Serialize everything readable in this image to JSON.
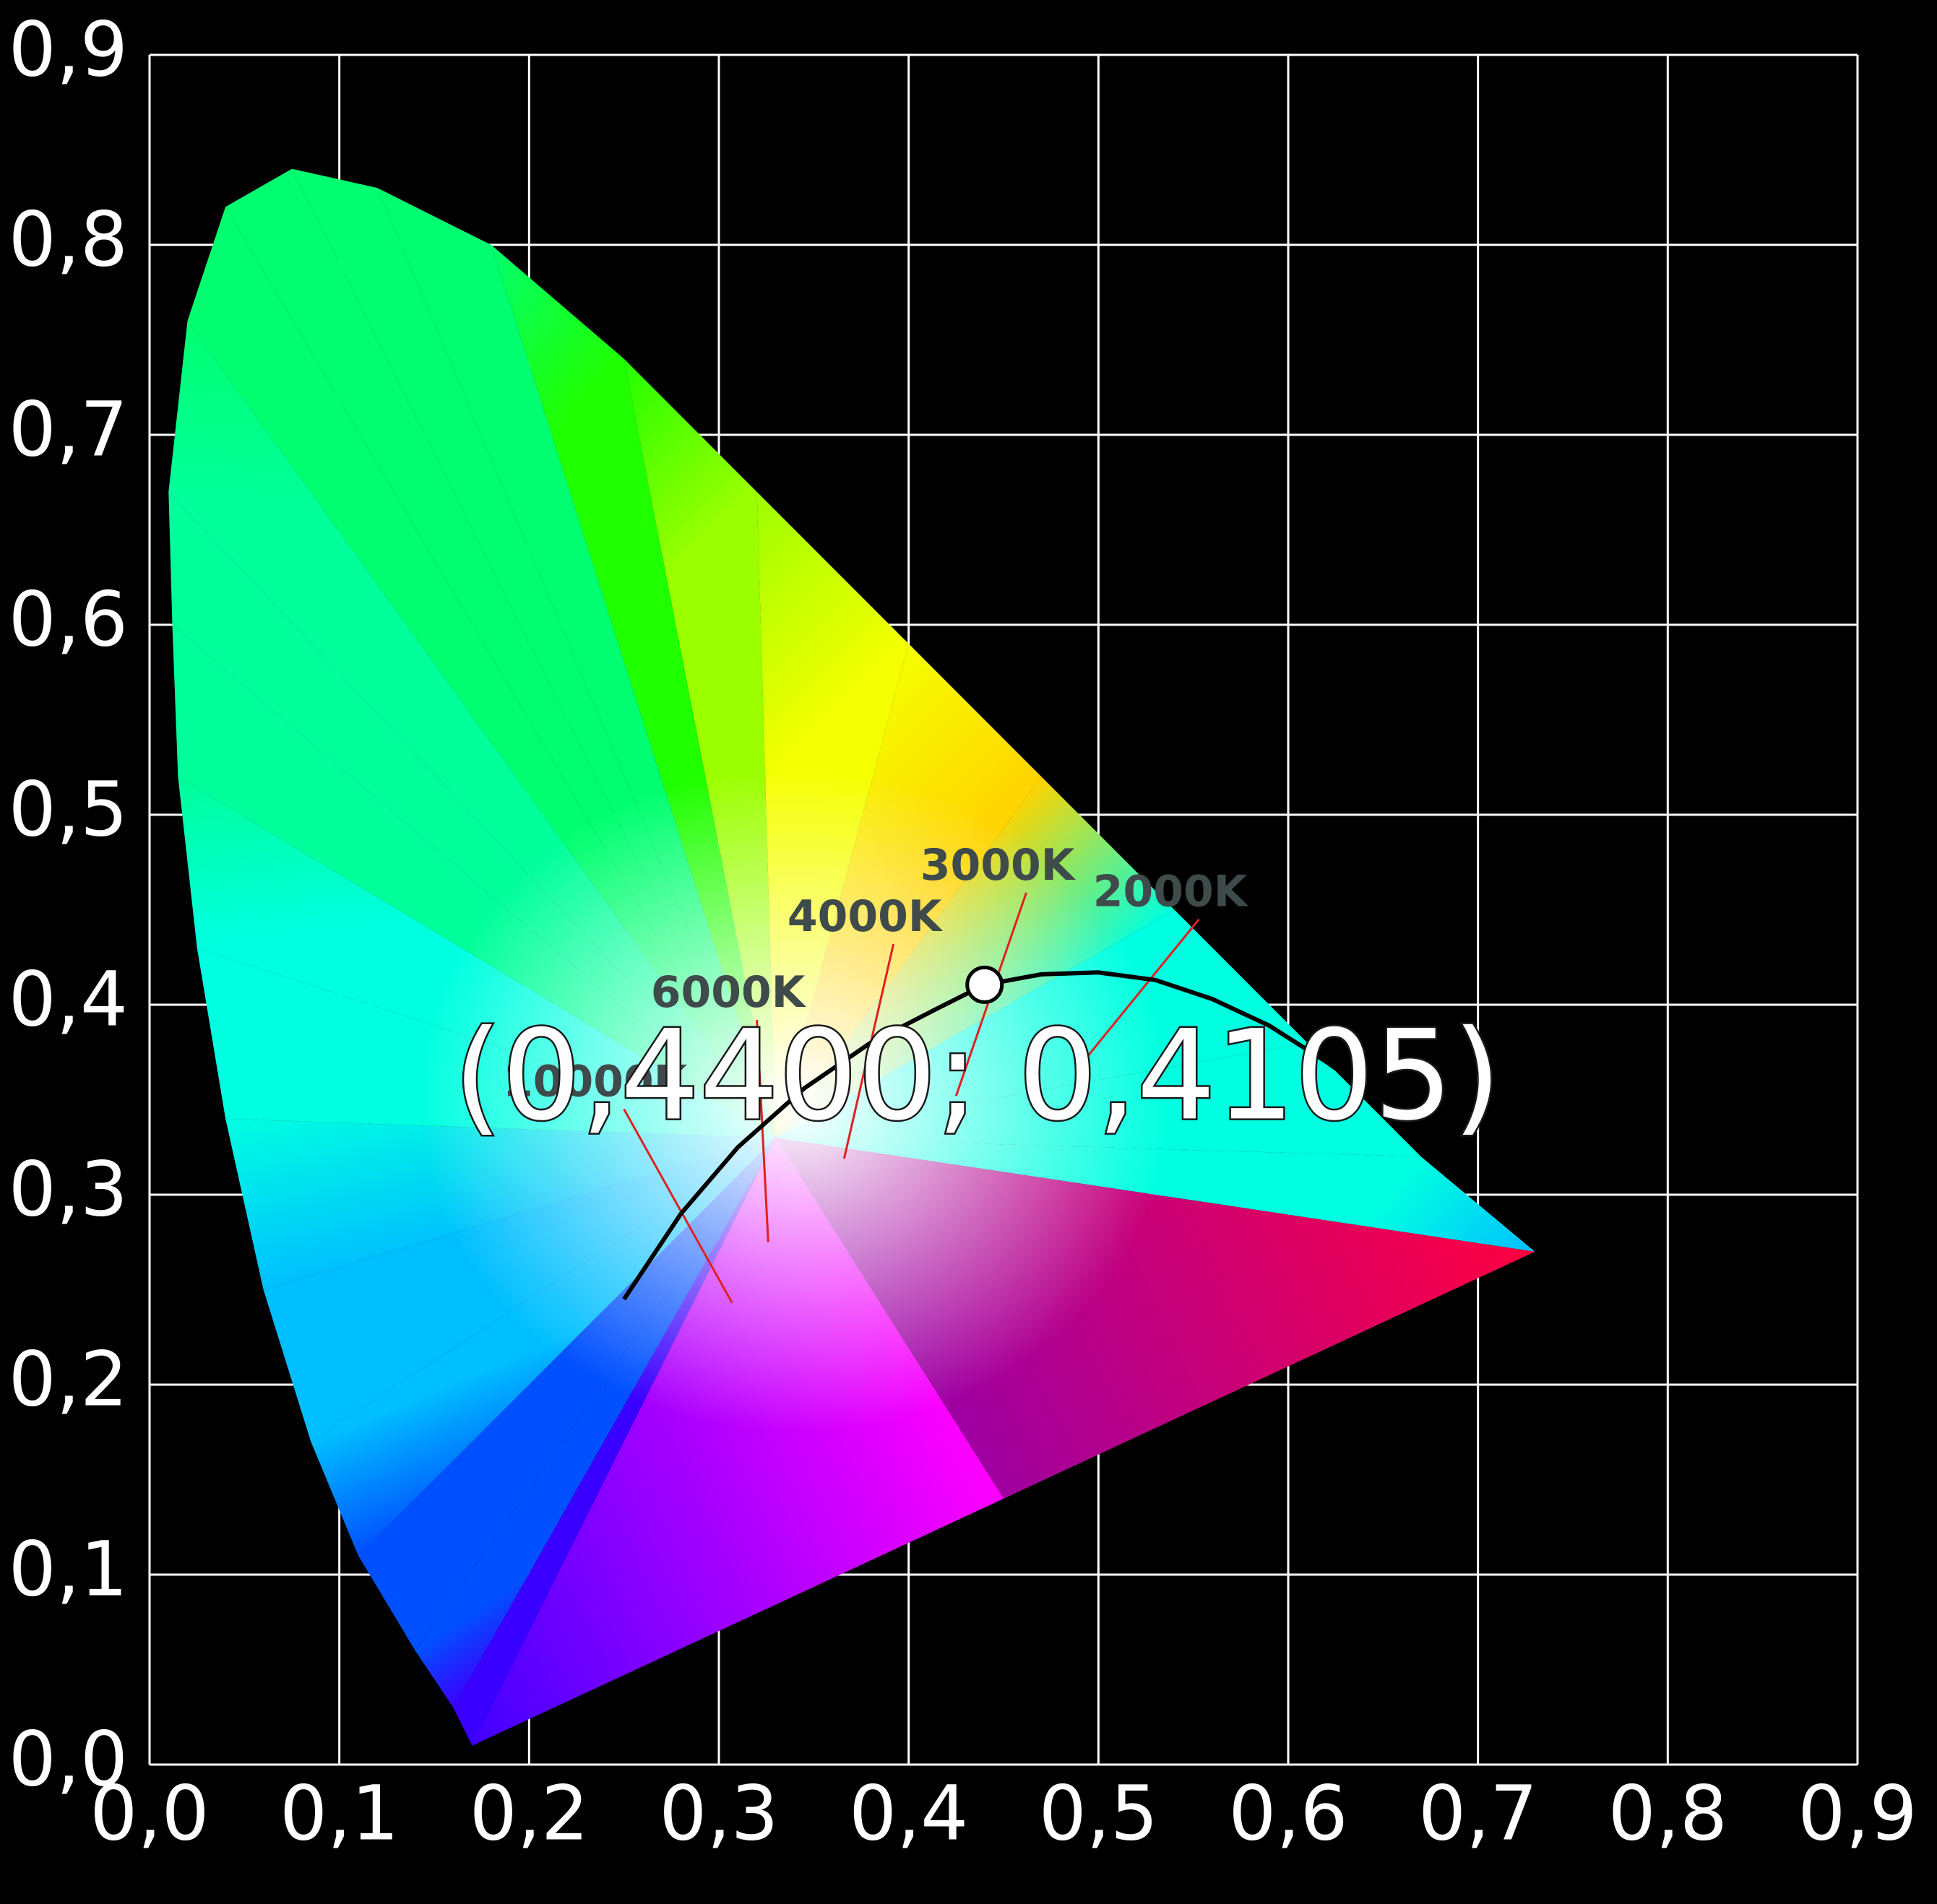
{
  "chart_data": {
    "type": "scatter",
    "title": "",
    "xlabel": "",
    "ylabel": "",
    "xlim": [
      0.0,
      0.9
    ],
    "ylim": [
      0.0,
      0.9
    ],
    "grid": true,
    "x_ticks": [
      "0,0",
      "0,1",
      "0,2",
      "0,3",
      "0,4",
      "0,5",
      "0,6",
      "0,7",
      "0,8",
      "0,9"
    ],
    "y_ticks": [
      "0,0",
      "0,1",
      "0,2",
      "0,3",
      "0,4",
      "0,5",
      "0,6",
      "0,7",
      "0,8",
      "0,9"
    ],
    "gamut_locus": [
      [
        0.17,
        0.01
      ],
      [
        0.16,
        0.03
      ],
      [
        0.14,
        0.06
      ],
      [
        0.11,
        0.11
      ],
      [
        0.085,
        0.17
      ],
      [
        0.06,
        0.25
      ],
      [
        0.04,
        0.34
      ],
      [
        0.025,
        0.43
      ],
      [
        0.015,
        0.52
      ],
      [
        0.012,
        0.6
      ],
      [
        0.01,
        0.67
      ],
      [
        0.02,
        0.76
      ],
      [
        0.04,
        0.82
      ],
      [
        0.075,
        0.84
      ],
      [
        0.12,
        0.83
      ],
      [
        0.18,
        0.8
      ],
      [
        0.25,
        0.74
      ],
      [
        0.32,
        0.67
      ],
      [
        0.4,
        0.59
      ],
      [
        0.47,
        0.52
      ],
      [
        0.54,
        0.45
      ],
      [
        0.61,
        0.38
      ],
      [
        0.67,
        0.32
      ],
      [
        0.73,
        0.27
      ]
    ],
    "planckian_locus": [
      [
        0.25,
        0.245
      ],
      [
        0.28,
        0.29
      ],
      [
        0.31,
        0.325
      ],
      [
        0.345,
        0.356
      ],
      [
        0.38,
        0.38
      ],
      [
        0.415,
        0.398
      ],
      [
        0.44,
        0.4105
      ],
      [
        0.47,
        0.416
      ],
      [
        0.5,
        0.417
      ],
      [
        0.53,
        0.413
      ],
      [
        0.56,
        0.403
      ],
      [
        0.59,
        0.389
      ],
      [
        0.62,
        0.37
      ],
      [
        0.65,
        0.349
      ]
    ],
    "isotherms": [
      {
        "label": "10000K",
        "from": [
          0.25,
          0.345
        ],
        "to": [
          0.307,
          0.243
        ]
      },
      {
        "label": "6000K",
        "from": [
          0.32,
          0.392
        ],
        "to": [
          0.326,
          0.275
        ]
      },
      {
        "label": "4000K",
        "from": [
          0.392,
          0.432
        ],
        "to": [
          0.366,
          0.319
        ]
      },
      {
        "label": "3000K",
        "from": [
          0.462,
          0.459
        ],
        "to": [
          0.425,
          0.352
        ]
      },
      {
        "label": "2000K",
        "from": [
          0.553,
          0.445
        ],
        "to": [
          0.492,
          0.37
        ]
      }
    ],
    "points": [
      {
        "x": 0.44,
        "y": 0.4105,
        "label": "(0,4400; 0,4105)"
      }
    ]
  }
}
